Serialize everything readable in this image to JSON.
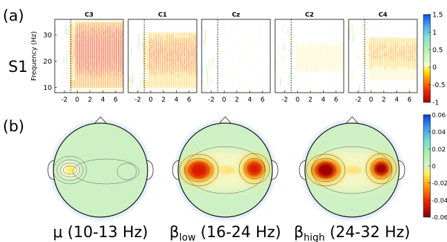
{
  "figure": {
    "panel_a_label": "(a)",
    "panel_b_label": "(b)",
    "subject_label": "S1"
  },
  "chart_data": [
    {
      "type": "heatmap",
      "panel": "(a)",
      "ylabel": "Frequency (Hz)",
      "xlabel": "",
      "xlim": [
        -3.5,
        7.2
      ],
      "ylim": [
        8,
        36
      ],
      "xticks": [
        -2,
        0,
        2,
        4,
        6
      ],
      "yticks": [
        10,
        20,
        30
      ],
      "event_marker_x": -1,
      "channels": [
        {
          "name": "C3",
          "strength": 1.0,
          "band": [
            13,
            34
          ]
        },
        {
          "name": "C1",
          "strength": 0.65,
          "band": [
            14,
            30
          ]
        },
        {
          "name": "Cz",
          "strength": 0.08,
          "band": [
            14,
            30
          ]
        },
        {
          "name": "C2",
          "strength": 0.18,
          "band": [
            16,
            26
          ]
        },
        {
          "name": "C4",
          "strength": 0.45,
          "band": [
            18,
            28
          ]
        }
      ],
      "colorbar": {
        "ticks": [
          1.5,
          1,
          0.5,
          0,
          -0.5,
          -1
        ],
        "range": [
          -1,
          1.5
        ]
      }
    },
    {
      "type": "heatmap",
      "panel": "(b)",
      "maps": [
        {
          "name": "μ (10-13 Hz)",
          "title_main": "μ (10-13 Hz)",
          "title_sub": "",
          "title_rest": "",
          "left_strength": -0.02,
          "left_sign": "positive",
          "right_strength": 0.2
        },
        {
          "name": "βlow (16-24 Hz)",
          "title_main": "β",
          "title_sub": "low",
          "title_rest": " (16-24 Hz)",
          "left_strength": 0.85,
          "left_sign": "negative",
          "right_strength": 0.75
        },
        {
          "name": "βhigh (24-32 Hz)",
          "title_main": "β",
          "title_sub": "high",
          "title_rest": " (24-32 Hz)",
          "left_strength": 1.0,
          "left_sign": "negative",
          "right_strength": 0.95
        }
      ],
      "colorbar": {
        "ticks": [
          0.06,
          0.04,
          0.02,
          0,
          -0.02,
          -0.04,
          -0.06
        ],
        "range": [
          -0.06,
          0.06
        ]
      }
    }
  ]
}
